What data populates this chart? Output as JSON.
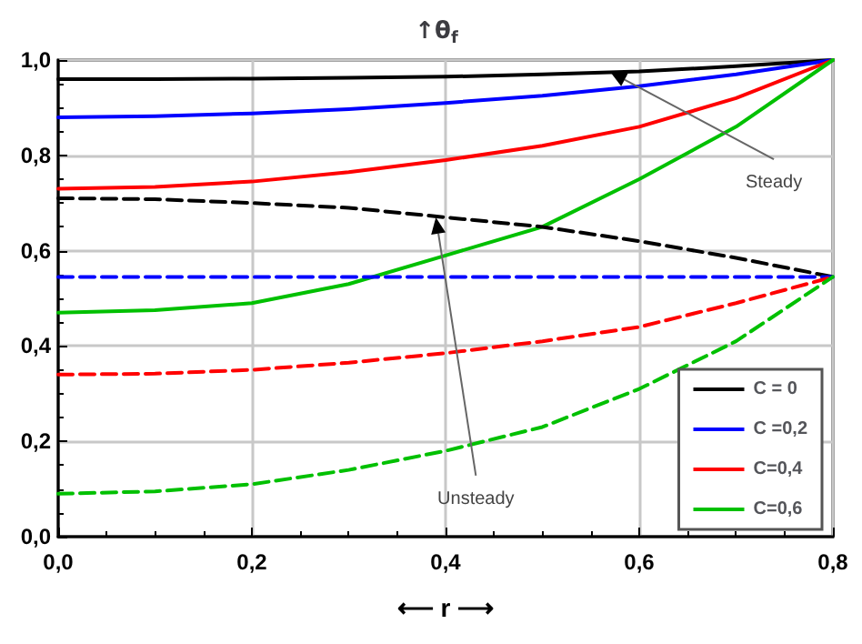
{
  "chart_data": {
    "type": "line",
    "title": "↑θ$_{f}$",
    "xlabel": "⟵ r ⟶",
    "x": [
      0,
      0.1,
      0.2,
      0.3,
      0.4,
      0.5,
      0.6,
      0.7,
      0.8
    ],
    "series": [
      {
        "name": "C = 0",
        "color": "#000000",
        "values": [
          0.96,
          0.96,
          0.961,
          0.963,
          0.965,
          0.97,
          0.976,
          0.987,
          1.0
        ]
      },
      {
        "name": "C =0,2",
        "color": "#0000ff",
        "values": [
          0.88,
          0.882,
          0.888,
          0.897,
          0.91,
          0.925,
          0.945,
          0.97,
          1.0
        ]
      },
      {
        "name": "C=0,4",
        "color": "#ff0000",
        "values": [
          0.73,
          0.734,
          0.745,
          0.765,
          0.79,
          0.82,
          0.86,
          0.92,
          1.0
        ]
      },
      {
        "name": "C=0,6",
        "color": "#00c000",
        "values": [
          0.47,
          0.475,
          0.49,
          0.53,
          0.59,
          0.65,
          0.75,
          0.86,
          1.0
        ]
      },
      {
        "color": "#000000",
        "line_style": "dashed",
        "values": [
          0.71,
          0.708,
          0.7,
          0.69,
          0.67,
          0.65,
          0.62,
          0.585,
          0.545
        ]
      },
      {
        "color": "#0000ff",
        "line_style": "dashed",
        "values": [
          0.545,
          0.545,
          0.545,
          0.545,
          0.545,
          0.545,
          0.545,
          0.545,
          0.545
        ]
      },
      {
        "color": "#ff0000",
        "line_style": "dashed",
        "values": [
          0.34,
          0.342,
          0.35,
          0.365,
          0.385,
          0.41,
          0.44,
          0.49,
          0.545
        ]
      },
      {
        "color": "#00c000",
        "line_style": "dashed",
        "values": [
          0.09,
          0.095,
          0.11,
          0.14,
          0.18,
          0.23,
          0.31,
          0.41,
          0.545
        ]
      }
    ],
    "xlim": [
      0,
      0.8
    ],
    "xticks": [
      {
        "value": 0,
        "label": "0,0"
      },
      {
        "value": 0.2,
        "label": "0,2"
      },
      {
        "value": 0.4,
        "label": "0,4"
      },
      {
        "value": 0.6,
        "label": "0,6"
      },
      {
        "value": 0.8,
        "label": "0,8"
      }
    ],
    "ylim": [
      0,
      1
    ],
    "yticks": [
      {
        "value": 0,
        "label": "0,0"
      },
      {
        "value": 0.2,
        "label": "0,2"
      },
      {
        "value": 0.4,
        "label": "0,4"
      },
      {
        "value": 0.6,
        "label": "0,6"
      },
      {
        "value": 0.8,
        "label": "0,8"
      },
      {
        "value": 1,
        "label": "1,0"
      }
    ],
    "grid": true,
    "legend": "bottom right",
    "marker": "none",
    "line_style": "solid",
    "annotations": [
      {
        "text": "Steady",
        "x": 0.57,
        "y": 0.975
      },
      {
        "text": "Unsteady",
        "x": 0.39,
        "y": 0.67
      }
    ]
  }
}
